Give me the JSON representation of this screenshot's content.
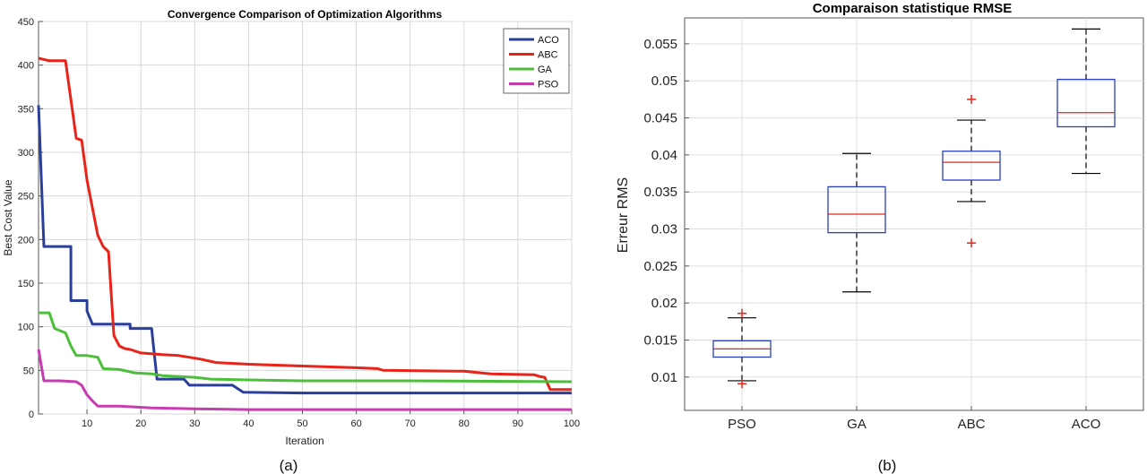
{
  "chart_data": [
    {
      "type": "line",
      "title": "Convergence Comparison of Optimization Algorithms",
      "xlabel": "Iteration",
      "ylabel": "Best Cost Value",
      "caption": "(a)",
      "xlim": [
        1,
        100
      ],
      "ylim": [
        0,
        450
      ],
      "xticks": [
        10,
        20,
        30,
        40,
        50,
        60,
        70,
        80,
        90,
        100
      ],
      "xtick_labels": [
        "10",
        "20",
        "30",
        "40",
        "50",
        "60",
        "70",
        "80",
        "90",
        "100"
      ],
      "yticks": [
        0,
        50,
        100,
        150,
        200,
        250,
        300,
        350,
        400,
        450
      ],
      "ytick_labels": [
        "0",
        "50",
        "100",
        "150",
        "200",
        "250",
        "300",
        "350",
        "400",
        "450"
      ],
      "grid": true,
      "legend_position": "top-right",
      "series": [
        {
          "name": "ACO",
          "color": "#2b3f9a",
          "x": [
            1,
            2,
            7,
            7,
            10,
            10,
            11,
            12,
            18,
            18,
            22,
            23,
            28,
            29,
            37,
            39,
            50,
            100
          ],
          "y": [
            354,
            192,
            192,
            130,
            130,
            118,
            103,
            103,
            103,
            98,
            98,
            40,
            40,
            33,
            33,
            25,
            24,
            24
          ]
        },
        {
          "name": "ABC",
          "color": "#e8241a",
          "x": [
            1,
            3,
            6,
            8,
            9,
            10,
            12,
            13,
            14,
            15,
            16,
            17,
            18,
            20,
            24,
            27,
            31,
            34,
            40,
            50,
            60,
            64,
            65,
            80,
            85,
            93,
            94,
            95,
            96,
            100
          ],
          "y": [
            408,
            405,
            405,
            316,
            314,
            268,
            205,
            192,
            186,
            90,
            78,
            75,
            74,
            70,
            68,
            67,
            63,
            59,
            57,
            55,
            53,
            52,
            50,
            49,
            46,
            45,
            43,
            42,
            28,
            28
          ]
        },
        {
          "name": "GA",
          "color": "#4cbf3a",
          "x": [
            1,
            3,
            4,
            6,
            7,
            8,
            10,
            11,
            12,
            13,
            16,
            19,
            22,
            24,
            30,
            33,
            40,
            50,
            70,
            100
          ],
          "y": [
            116,
            116,
            98,
            93,
            78,
            67,
            67,
            66,
            65,
            52,
            51,
            47,
            46,
            44,
            42,
            40,
            39,
            38,
            38,
            37
          ]
        },
        {
          "name": "PSO",
          "color": "#c73cb0",
          "x": [
            1,
            2,
            5,
            8,
            9,
            10,
            11,
            12,
            16,
            19,
            22,
            30,
            40,
            60,
            100
          ],
          "y": [
            74,
            38,
            38,
            37,
            33,
            22,
            15,
            9,
            9,
            8,
            7,
            6,
            5,
            5,
            5
          ]
        }
      ]
    },
    {
      "type": "box",
      "title": "Comparaison statistique RMSE",
      "ylabel": "Erreur RMS",
      "caption": "(b)",
      "categories": [
        "PSO",
        "GA",
        "ABC",
        "ACO"
      ],
      "ylim": [
        0.0055,
        0.0585
      ],
      "yticks": [
        0.01,
        0.015,
        0.02,
        0.025,
        0.03,
        0.035,
        0.04,
        0.045,
        0.05,
        0.055
      ],
      "ytick_labels": [
        "0.01",
        "0.015",
        "0.02",
        "0.025",
        "0.03",
        "0.035",
        "0.04",
        "0.045",
        "0.05",
        "0.055"
      ],
      "grid": true,
      "box_color": "#2a3fc0",
      "median_color": "#e8241a",
      "whisker_color": "#000000",
      "boxes": [
        {
          "name": "PSO",
          "q1": 0.0127,
          "median": 0.0138,
          "q3": 0.0149,
          "lower_whisker": 0.0095,
          "upper_whisker": 0.018,
          "outliers": [
            0.0186,
            0.0091
          ]
        },
        {
          "name": "GA",
          "q1": 0.0295,
          "median": 0.032,
          "q3": 0.0357,
          "lower_whisker": 0.0215,
          "upper_whisker": 0.0402,
          "outliers": []
        },
        {
          "name": "ABC",
          "q1": 0.0366,
          "median": 0.039,
          "q3": 0.0405,
          "lower_whisker": 0.0337,
          "upper_whisker": 0.0447,
          "outliers": [
            0.0475,
            0.0281
          ]
        },
        {
          "name": "ACO",
          "q1": 0.0438,
          "median": 0.0457,
          "q3": 0.0502,
          "lower_whisker": 0.0375,
          "upper_whisker": 0.057,
          "outliers": []
        }
      ]
    }
  ]
}
